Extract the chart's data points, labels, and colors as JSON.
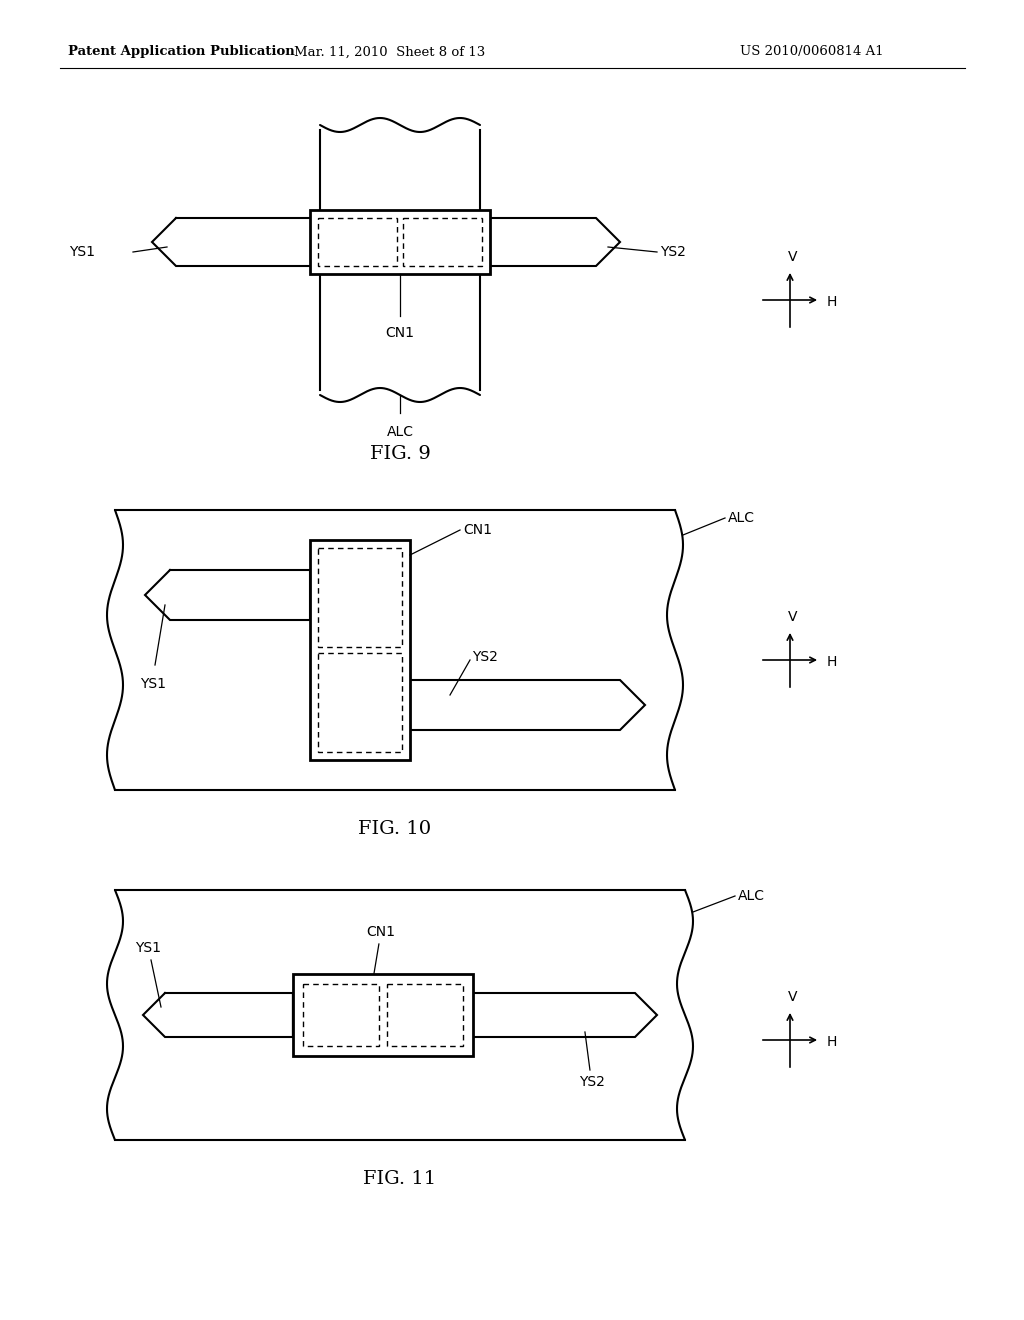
{
  "bg_color": "#ffffff",
  "header_left": "Patent Application Publication",
  "header_mid": "Mar. 11, 2010  Sheet 8 of 13",
  "header_right": "US 2010/0060814 A1",
  "fig9_label": "FIG. 9",
  "fig10_label": "FIG. 10",
  "fig11_label": "FIG. 11",
  "lw_thick": 2.0,
  "lw_med": 1.5,
  "lw_thin": 1.0,
  "lw_leader": 0.9,
  "fs_label": 10,
  "fs_fig": 14,
  "fs_header": 9.5
}
